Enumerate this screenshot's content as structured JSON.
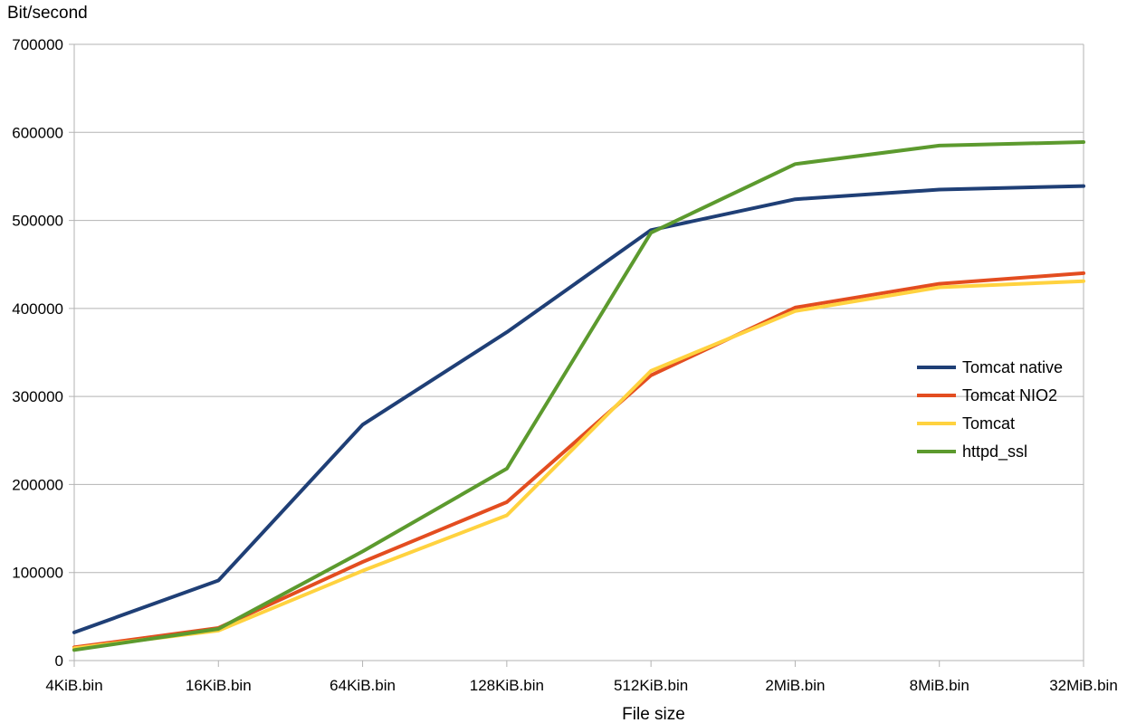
{
  "chart_data": {
    "type": "line",
    "title": "",
    "xlabel": "File size",
    "ylabel": "Bit/second",
    "ylim": [
      0,
      700000
    ],
    "ytick_step": 100000,
    "yticks": [
      "0",
      "100000",
      "200000",
      "300000",
      "400000",
      "500000",
      "600000",
      "700000"
    ],
    "grid": true,
    "legend_position": "right",
    "categories": [
      "4KiB.bin",
      "16KiB.bin",
      "64KiB.bin",
      "128KiB.bin",
      "512KiB.bin",
      "2MiB.bin",
      "8MiB.bin",
      "32MiB.bin"
    ],
    "series": [
      {
        "name": "Tomcat native",
        "color": "#1f3f76",
        "values": [
          32000,
          91000,
          268000,
          373000,
          489000,
          524000,
          535000,
          539000
        ]
      },
      {
        "name": "Tomcat NIO2",
        "color": "#e34d20",
        "values": [
          15000,
          37000,
          112000,
          180000,
          324000,
          401000,
          428000,
          440000
        ]
      },
      {
        "name": "Tomcat",
        "color": "#ffd23f",
        "values": [
          14000,
          34000,
          102000,
          165000,
          329000,
          397000,
          424000,
          431000
        ]
      },
      {
        "name": "httpd_ssl",
        "color": "#5c9a2e",
        "values": [
          12000,
          36000,
          124000,
          218000,
          486000,
          564000,
          585000,
          589000
        ]
      }
    ]
  }
}
